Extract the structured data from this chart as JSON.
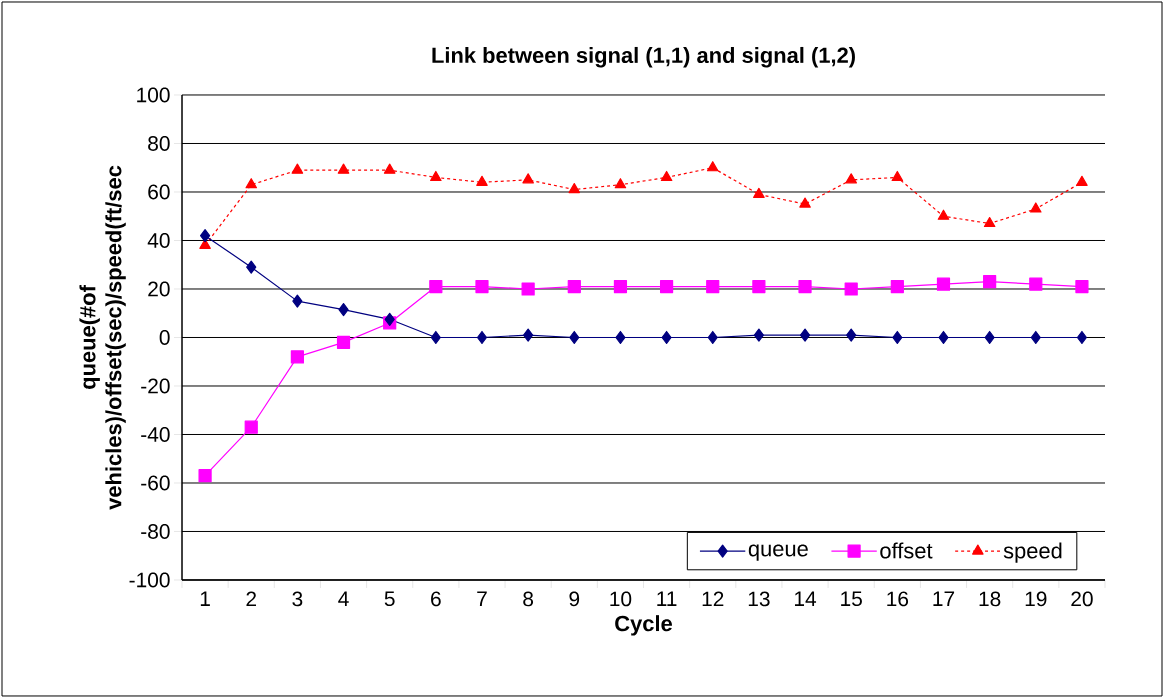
{
  "chart_data": {
    "type": "line",
    "title": "Link between signal (1,1) and signal (1,2)",
    "xlabel": "Cycle",
    "ylabel": "queue(#of vehicles)/offset(sec)/speed(ft/sec",
    "categories": [
      "1",
      "2",
      "3",
      "4",
      "5",
      "6",
      "7",
      "8",
      "9",
      "10",
      "11",
      "12",
      "13",
      "14",
      "15",
      "16",
      "17",
      "18",
      "19",
      "20"
    ],
    "series": [
      {
        "name": "queue",
        "color": "#000080",
        "marker": "diamond",
        "line_style": "solid",
        "values": [
          42,
          29,
          15,
          11.5,
          7.5,
          0,
          0,
          1,
          0,
          0,
          0,
          0,
          1,
          1,
          1,
          0,
          0,
          0,
          0,
          0
        ]
      },
      {
        "name": "offset",
        "color": "#ff00ff",
        "marker": "square",
        "line_style": "solid",
        "values": [
          -57,
          -37,
          -8,
          -2,
          6,
          21,
          21,
          20,
          21,
          21,
          21,
          21,
          21,
          21,
          20,
          21,
          22,
          23,
          22,
          21
        ]
      },
      {
        "name": "speed",
        "color": "#ff0000",
        "marker": "triangle",
        "line_style": "dashed",
        "values": [
          38,
          63,
          69,
          69,
          69,
          66,
          64,
          65,
          61,
          63,
          66,
          70,
          59,
          55,
          65,
          66,
          50,
          47,
          53,
          64
        ]
      }
    ],
    "ylim": [
      -100,
      100
    ],
    "yticks": [
      -100,
      -80,
      -60,
      -40,
      -20,
      0,
      20,
      40,
      60,
      80,
      100
    ],
    "grid": "y",
    "legend": "bottom right"
  }
}
